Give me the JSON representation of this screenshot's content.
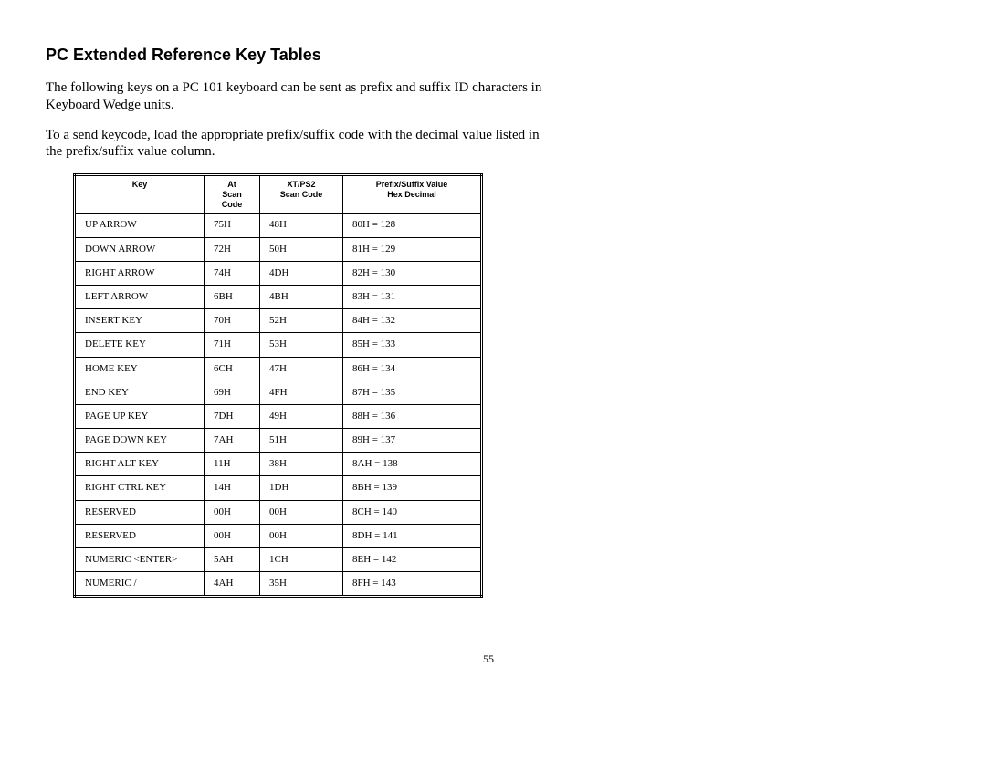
{
  "title": "PC Extended Reference Key Tables",
  "para1": "The following keys on a PC 101 keyboard can be sent as prefix and suffix ID characters in Keyboard Wedge units.",
  "para2": "To a send keycode, load the appropriate prefix/suffix code with the decimal value listed in the prefix/suffix value column.",
  "headers": {
    "key": "Key",
    "at": "At\nScan\nCode",
    "xt": "XT/PS2\nScan Code",
    "ps": "Prefix/Suffix Value\nHex   Decimal"
  },
  "rows": [
    {
      "key": "UP ARROW",
      "at": "75H",
      "xt": "48H",
      "ps": "80H = 128"
    },
    {
      "key": "DOWN ARROW",
      "at": "72H",
      "xt": "50H",
      "ps": "81H = 129"
    },
    {
      "key": "RIGHT ARROW",
      "at": "74H",
      "xt": "4DH",
      "ps": "82H = 130"
    },
    {
      "key": "LEFT ARROW",
      "at": "6BH",
      "xt": "4BH",
      "ps": "83H = 131"
    },
    {
      "key": "INSERT  KEY",
      "at": "70H",
      "xt": "52H",
      "ps": "84H = 132"
    },
    {
      "key": "DELETE KEY",
      "at": "71H",
      "xt": "53H",
      "ps": "85H = 133"
    },
    {
      "key": "HOME KEY",
      "at": "6CH",
      "xt": "47H",
      "ps": "86H = 134"
    },
    {
      "key": "END KEY",
      "at": "69H",
      "xt": "4FH",
      "ps": "87H = 135"
    },
    {
      "key": "PAGE UP KEY",
      "at": "7DH",
      "xt": "49H",
      "ps": "88H = 136"
    },
    {
      "key": "PAGE DOWN KEY",
      "at": "7AH",
      "xt": "51H",
      "ps": "89H = 137"
    },
    {
      "key": "RIGHT ALT KEY",
      "at": "11H",
      "xt": "38H",
      "ps": "8AH = 138"
    },
    {
      "key": "RIGHT CTRL KEY",
      "at": "14H",
      "xt": "1DH",
      "ps": "8BH = 139"
    },
    {
      "key": "RESERVED",
      "at": "00H",
      "xt": "00H",
      "ps": "8CH = 140"
    },
    {
      "key": "RESERVED",
      "at": "00H",
      "xt": "00H",
      "ps": "8DH = 141"
    },
    {
      "key": "NUMERIC <ENTER>",
      "at": "5AH",
      "xt": "1CH",
      "ps": "8EH = 142"
    },
    {
      "key": "NUMERIC /",
      "at": "4AH",
      "xt": "35H",
      "ps": "8FH = 143"
    }
  ],
  "pagenum": "55"
}
